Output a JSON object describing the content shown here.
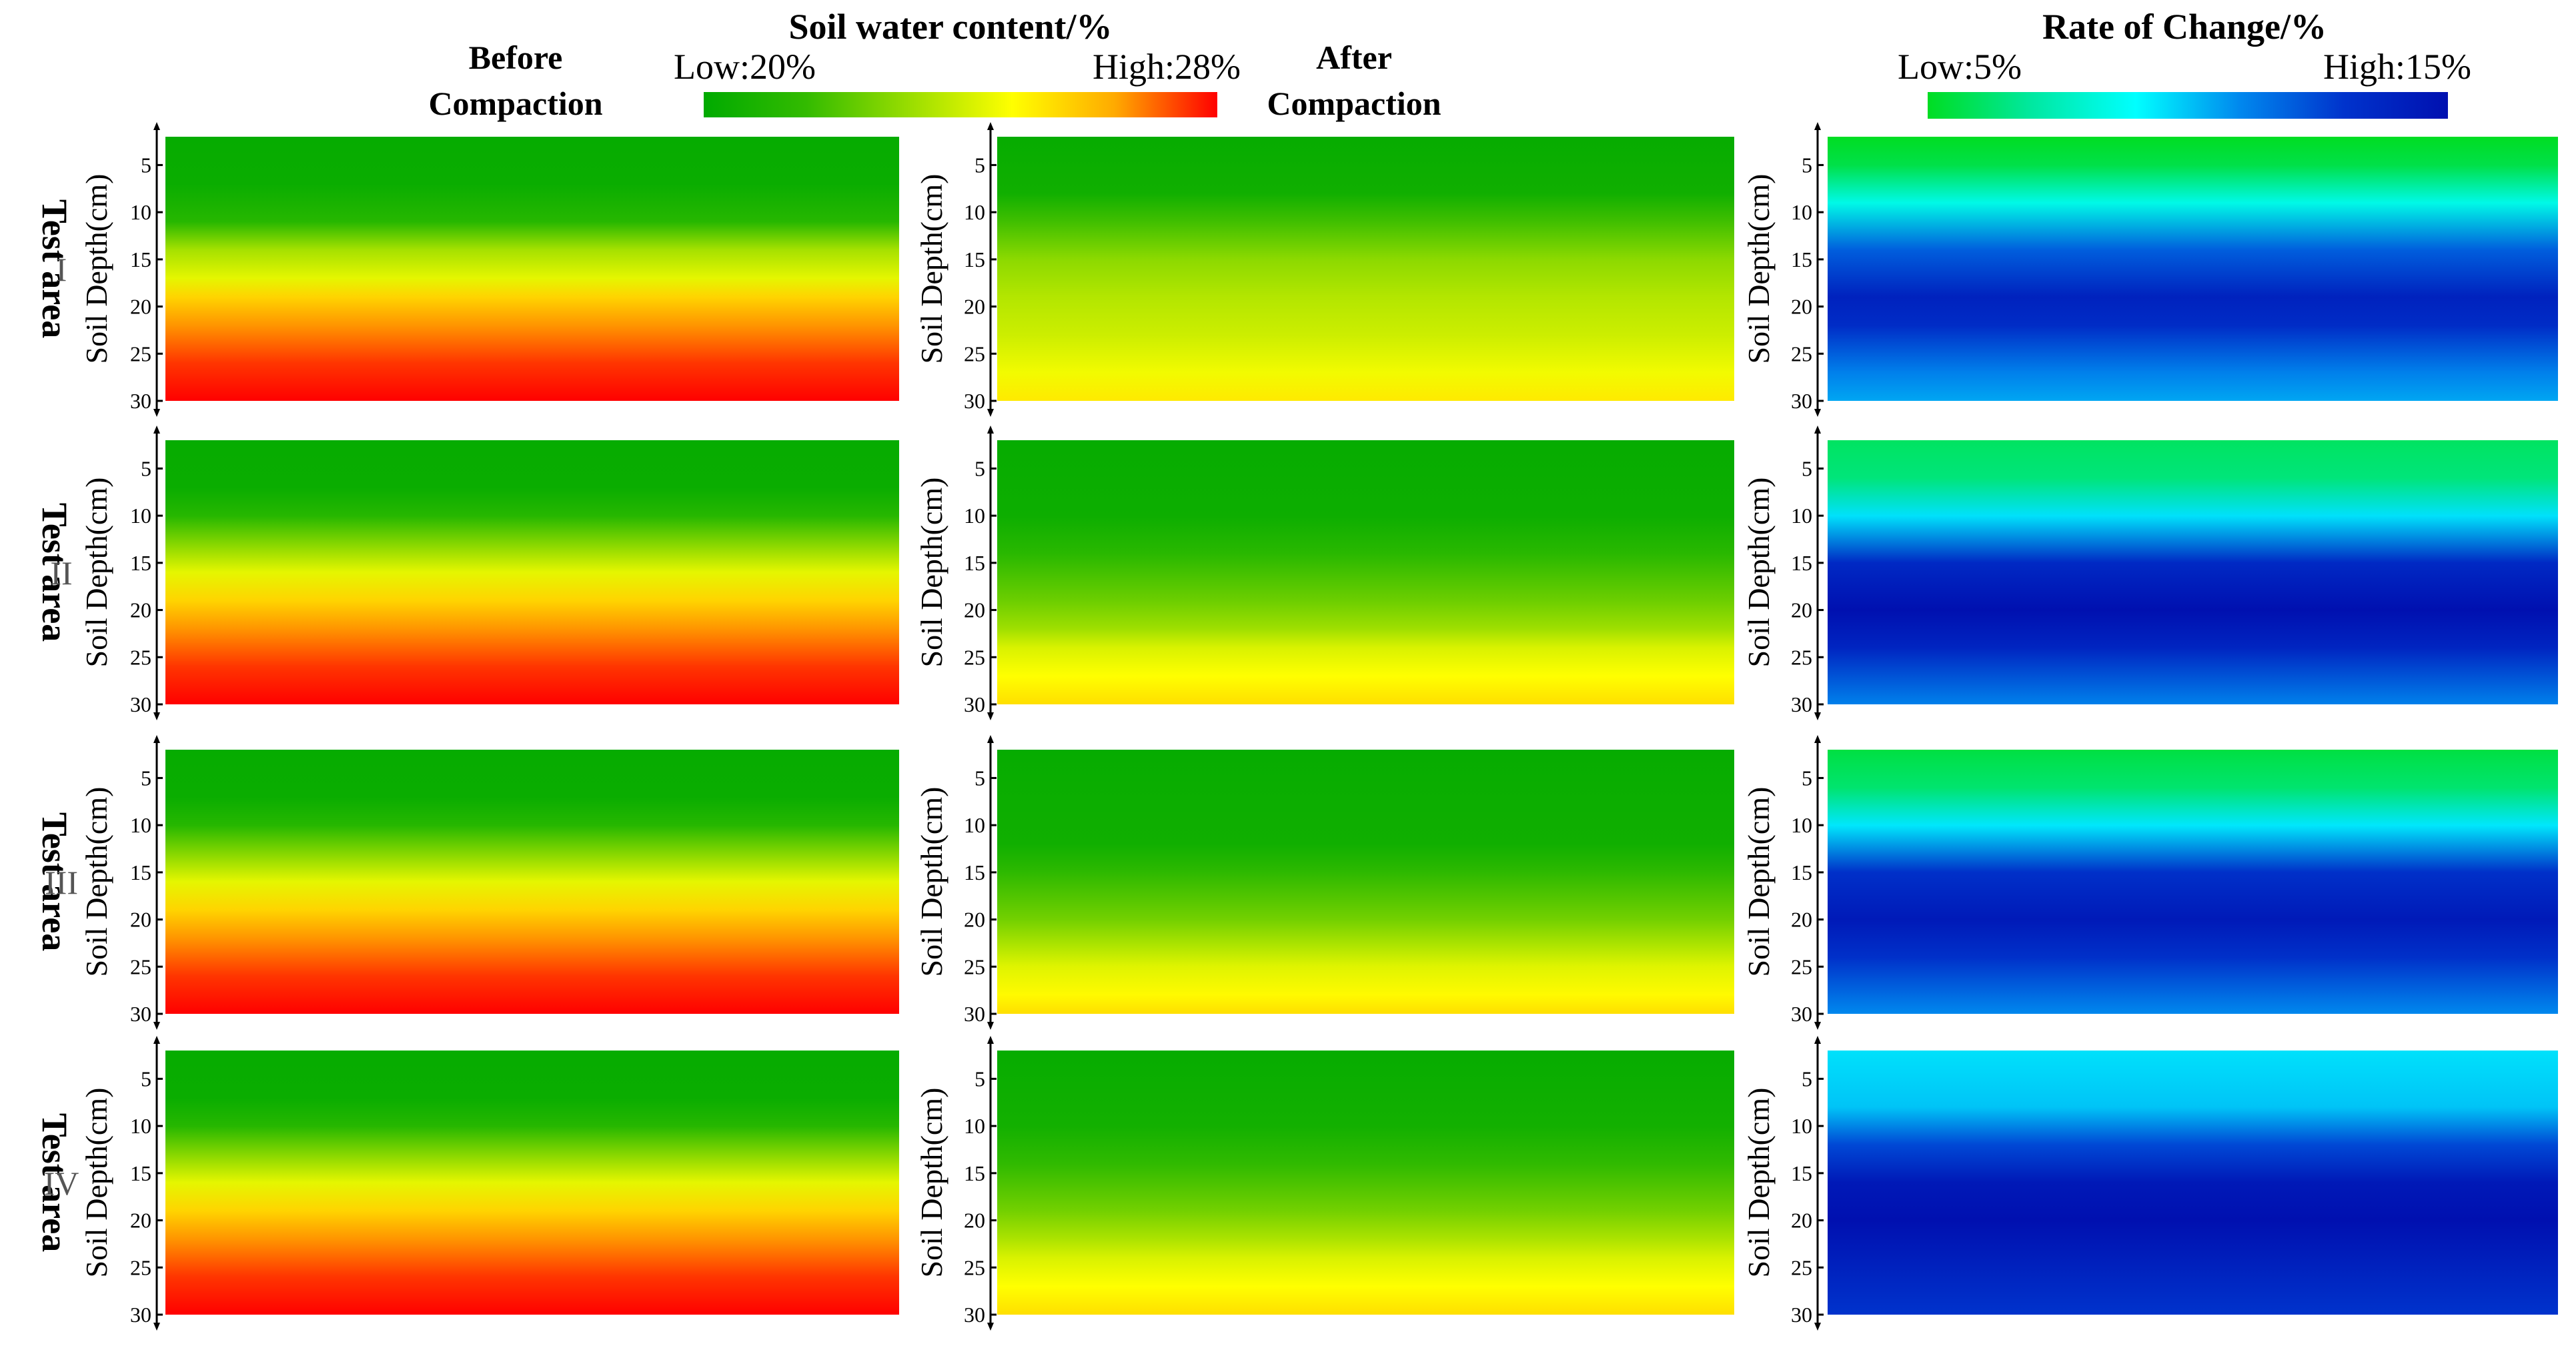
{
  "header": {
    "col_before": [
      "Before",
      "Compaction"
    ],
    "col_after": [
      "After",
      "Compaction"
    ],
    "swc_title": "Soil water content/%",
    "swc_low": "Low:20%",
    "swc_high": "High:28%",
    "roc_title": "Rate of Change/%",
    "roc_low": "Low:5%",
    "roc_high": "High:15%"
  },
  "colors": {
    "swc_scale": [
      "#00aa00",
      "#33bb00",
      "#99dd00",
      "#ffff00",
      "#ffaa00",
      "#ff0000"
    ],
    "roc_scale": [
      "#00dd22",
      "#00e8a0",
      "#00ffff",
      "#0088ee",
      "#0033cc",
      "#0010b0"
    ]
  },
  "chart_data": {
    "type": "heatmap",
    "y_axis_label": "Soil Depth(cm)",
    "y_ticks": [
      "5",
      "10",
      "15",
      "20",
      "25",
      "30"
    ],
    "ylim": [
      2,
      30
    ],
    "row_label": "Test area",
    "rows": [
      {
        "roman": "I",
        "before_swc_percent": {
          "depths": [
            2,
            7,
            11,
            14,
            17,
            19,
            22,
            26,
            30
          ],
          "values": [
            20.2,
            20.3,
            21.2,
            23.4,
            24.4,
            25.6,
            26.6,
            27.5,
            28.0
          ]
        },
        "after_swc_percent": {
          "depths": [
            2,
            8,
            11,
            15,
            19,
            23,
            27,
            30
          ],
          "values": [
            20.2,
            20.5,
            21.8,
            23.0,
            23.6,
            24.0,
            24.6,
            25.2
          ]
        },
        "rate_of_change_percent": {
          "depths": [
            2,
            5,
            9,
            14,
            19,
            22,
            27,
            30
          ],
          "values": [
            5.0,
            5.6,
            8.5,
            12.0,
            14.0,
            13.4,
            11.2,
            10.5
          ]
        }
      },
      {
        "roman": "II",
        "before_swc_percent": {
          "depths": [
            2,
            7,
            10,
            14,
            16,
            19,
            22,
            26,
            30
          ],
          "values": [
            20.2,
            20.3,
            21.2,
            23.4,
            24.4,
            25.6,
            26.6,
            27.5,
            28.0
          ]
        },
        "after_swc_percent": {
          "depths": [
            2,
            10,
            14,
            19,
            22,
            24,
            27,
            30
          ],
          "values": [
            20.2,
            20.4,
            21.3,
            22.5,
            23.3,
            24.2,
            24.8,
            25.4
          ]
        },
        "rate_of_change_percent": {
          "depths": [
            2,
            6,
            10,
            15,
            20,
            24,
            30
          ],
          "values": [
            6.0,
            6.4,
            9.5,
            13.6,
            15.0,
            13.8,
            11.2
          ]
        }
      },
      {
        "roman": "III",
        "before_swc_percent": {
          "depths": [
            2,
            7,
            10,
            14,
            16,
            19,
            22,
            26,
            30
          ],
          "values": [
            20.2,
            20.3,
            21.2,
            23.4,
            24.4,
            25.6,
            26.6,
            27.5,
            28.0
          ]
        },
        "after_swc_percent": {
          "depths": [
            2,
            12,
            15,
            20,
            23,
            25,
            28,
            30
          ],
          "values": [
            20.2,
            20.5,
            21.4,
            22.6,
            23.6,
            24.3,
            24.9,
            25.4
          ]
        },
        "rate_of_change_percent": {
          "depths": [
            2,
            6,
            10,
            15,
            20,
            24,
            30
          ],
          "values": [
            5.5,
            6.2,
            9.4,
            13.2,
            14.4,
            13.2,
            11.0
          ]
        }
      },
      {
        "roman": "IV",
        "before_swc_percent": {
          "depths": [
            2,
            7,
            10,
            14,
            16,
            19,
            22,
            26,
            30
          ],
          "values": [
            20.2,
            20.3,
            21.2,
            23.4,
            24.4,
            25.6,
            26.6,
            27.5,
            28.0
          ]
        },
        "after_swc_percent": {
          "depths": [
            2,
            10,
            14,
            19,
            22,
            24,
            27,
            30
          ],
          "values": [
            20.2,
            20.6,
            21.5,
            22.6,
            23.5,
            24.2,
            24.8,
            25.4
          ]
        },
        "rate_of_change_percent": {
          "depths": [
            2,
            8,
            12,
            16,
            20,
            24,
            30
          ],
          "values": [
            9.5,
            10.0,
            12.5,
            14.5,
            15.0,
            14.2,
            13.0
          ]
        }
      }
    ]
  }
}
